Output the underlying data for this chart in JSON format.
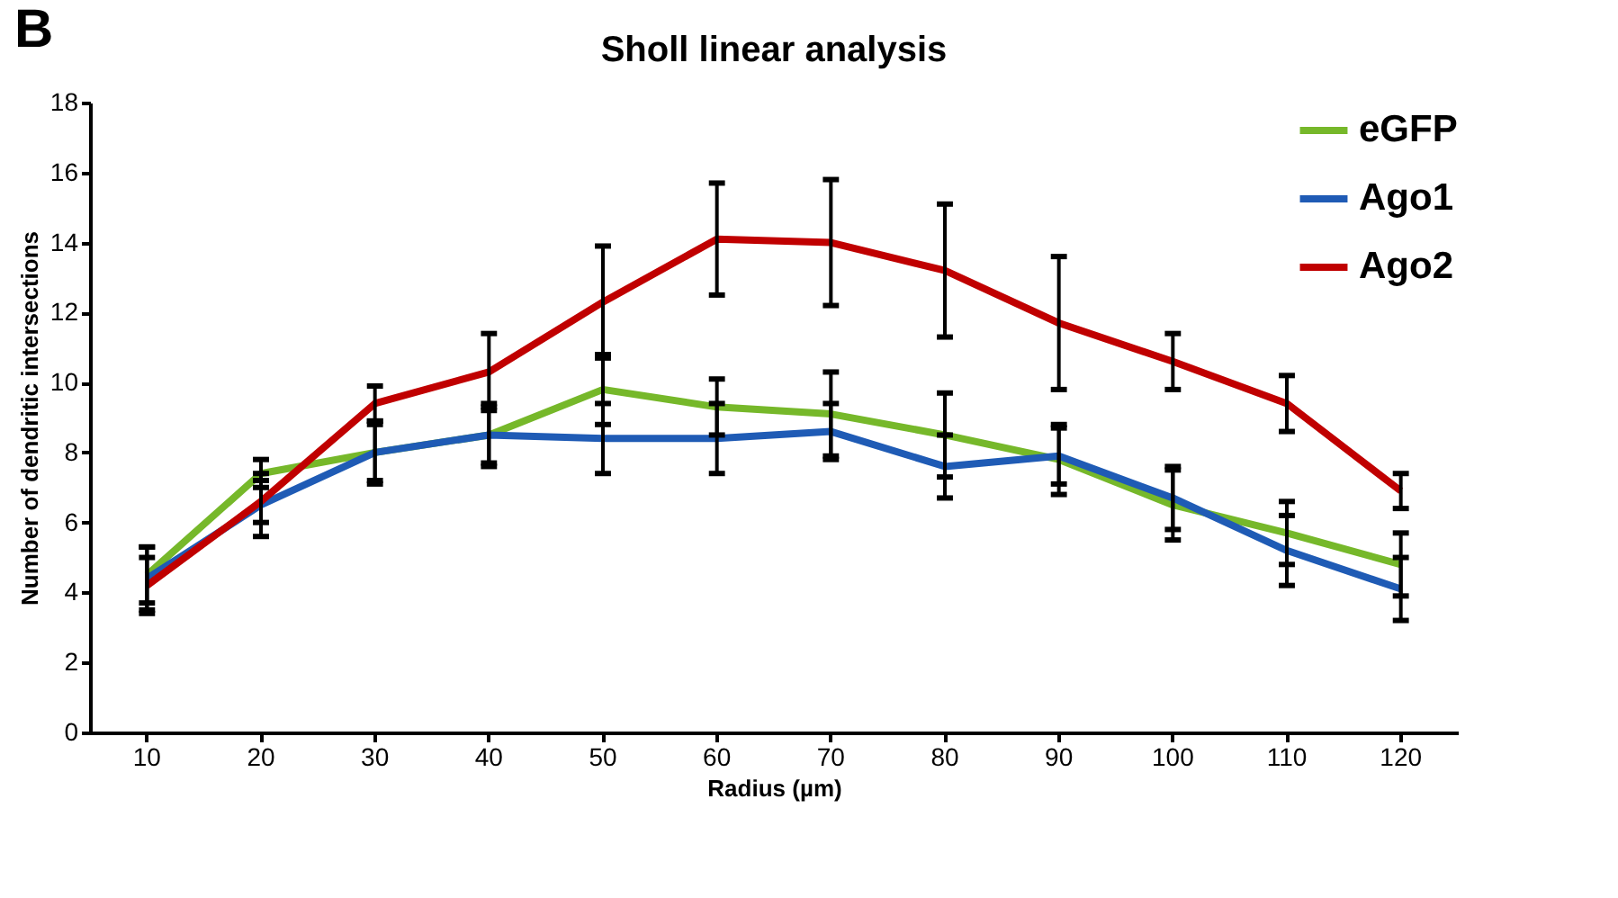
{
  "chart_data": {
    "type": "line",
    "title": "Sholl linear analysis",
    "xlabel": "Radius (µm)",
    "ylabel": "Number of dendritic intersections",
    "annotations": [
      "B"
    ],
    "categories": [
      "10",
      "20",
      "30",
      "40",
      "50",
      "60",
      "70",
      "80",
      "90",
      "100",
      "110",
      "120"
    ],
    "series": [
      {
        "name": "eGFP",
        "color": "#76b82a",
        "values": [
          4.5,
          7.4,
          8.0,
          8.5,
          9.8,
          9.3,
          9.1,
          8.5,
          7.8,
          6.5,
          5.7,
          4.8
        ],
        "errors": [
          0.8,
          0.4,
          0.8,
          0.9,
          1.0,
          0.8,
          1.2,
          1.2,
          1.0,
          1.0,
          0.9,
          0.9
        ]
      },
      {
        "name": "Ago1",
        "color": "#1f5bb5",
        "values": [
          4.4,
          6.5,
          8.0,
          8.5,
          8.4,
          8.4,
          8.6,
          7.6,
          7.9,
          6.7,
          5.2,
          4.1
        ],
        "errors": [
          0.9,
          0.9,
          0.9,
          0.8,
          1.0,
          1.0,
          0.8,
          0.9,
          0.8,
          0.9,
          1.0,
          0.9
        ]
      },
      {
        "name": "Ago2",
        "color": "#c00000",
        "values": [
          4.2,
          6.6,
          9.4,
          10.3,
          12.3,
          14.1,
          14.0,
          13.2,
          11.7,
          10.6,
          9.4,
          6.9
        ],
        "errors": [
          0.8,
          0.6,
          0.5,
          1.1,
          1.6,
          1.6,
          1.8,
          1.9,
          1.9,
          0.8,
          0.8,
          0.5
        ]
      }
    ],
    "ylim": [
      0,
      18
    ],
    "yticks": [
      0,
      2,
      4,
      6,
      8,
      10,
      12,
      14,
      16,
      18
    ],
    "grid": false,
    "legend": "top right",
    "marker": "none",
    "line_style": "solid"
  }
}
